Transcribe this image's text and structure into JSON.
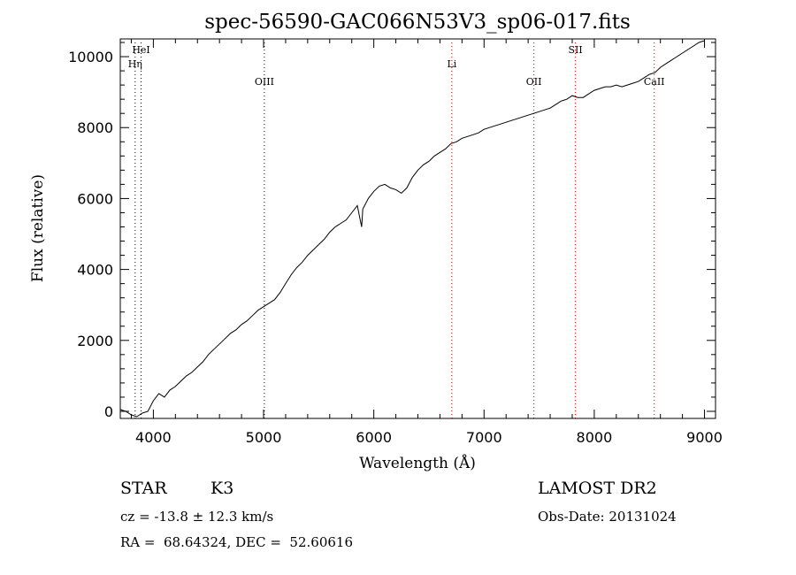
{
  "chart_data": {
    "type": "line",
    "title": "spec-56590-GAC066N53V3_sp06-017.fits",
    "xlabel": "Wavelength (Å)",
    "ylabel": "Flux (relative)",
    "xlim": [
      3700,
      9100
    ],
    "ylim": [
      -200,
      10500
    ],
    "x_ticks": [
      4000,
      5000,
      6000,
      7000,
      8000,
      9000
    ],
    "y_ticks": [
      0,
      2000,
      4000,
      6000,
      8000,
      10000
    ],
    "grid": false,
    "series": [
      {
        "x": [
          3700,
          3750,
          3800,
          3850,
          3900,
          3950,
          4000,
          4050,
          4100,
          4150,
          4200,
          4250,
          4300,
          4350,
          4400,
          4450,
          4500,
          4550,
          4600,
          4650,
          4700,
          4750,
          4800,
          4850,
          4900,
          4950,
          5000,
          5050,
          5100,
          5150,
          5200,
          5250,
          5300,
          5350,
          5400,
          5450,
          5500,
          5550,
          5600,
          5650,
          5700,
          5750,
          5800,
          5850,
          5890,
          5900,
          5950,
          6000,
          6050,
          6100,
          6150,
          6200,
          6250,
          6300,
          6350,
          6400,
          6450,
          6500,
          6550,
          6600,
          6650,
          6700,
          6750,
          6800,
          6850,
          6900,
          6950,
          7000,
          7050,
          7100,
          7150,
          7200,
          7250,
          7300,
          7350,
          7400,
          7450,
          7500,
          7550,
          7600,
          7650,
          7700,
          7750,
          7800,
          7850,
          7900,
          7950,
          8000,
          8050,
          8100,
          8150,
          8200,
          8250,
          8300,
          8350,
          8400,
          8450,
          8500,
          8550,
          8600,
          8650,
          8700,
          8750,
          8800,
          8850,
          8900,
          8950,
          9000
        ],
        "y": [
          50,
          0,
          -100,
          -150,
          -50,
          0,
          300,
          500,
          400,
          600,
          700,
          850,
          1000,
          1100,
          1250,
          1400,
          1600,
          1750,
          1900,
          2050,
          2200,
          2300,
          2450,
          2550,
          2700,
          2850,
          2950,
          3050,
          3150,
          3350,
          3600,
          3850,
          4050,
          4200,
          4400,
          4550,
          4700,
          4850,
          5050,
          5200,
          5300,
          5400,
          5600,
          5800,
          5200,
          5700,
          6000,
          6200,
          6350,
          6400,
          6300,
          6250,
          6150,
          6300,
          6600,
          6800,
          6950,
          7050,
          7200,
          7300,
          7400,
          7550,
          7600,
          7700,
          7750,
          7800,
          7850,
          7950,
          8000,
          8050,
          8100,
          8150,
          8200,
          8250,
          8300,
          8350,
          8400,
          8450,
          8500,
          8550,
          8650,
          8750,
          8800,
          8900,
          8850,
          8850,
          8950,
          9050,
          9100,
          9150,
          9150,
          9200,
          9150,
          9200,
          9250,
          9300,
          9400,
          9500,
          9550,
          9700,
          9800,
          9900,
          10000,
          10100,
          10200,
          10300,
          10400,
          10450
        ]
      }
    ],
    "line_markers": [
      {
        "label": "HeI",
        "x": 3889,
        "color": "#000000",
        "label_y": 10100
      },
      {
        "label": "Hη",
        "x": 3835,
        "color": "#000000",
        "label_y": 9700
      },
      {
        "label": "OIII",
        "x": 5007,
        "color": "#000000",
        "label_y": 9200
      },
      {
        "label": "Li",
        "x": 6708,
        "color": "#cc0000",
        "label_y": 9700
      },
      {
        "label": "OII",
        "x": 7452,
        "color": "#cc0000",
        "label_y": 9200
      },
      {
        "label": "SII",
        "x": 7829,
        "color": "#cc0000",
        "label_y": 10100
      },
      {
        "label": "CaII",
        "x": 8544,
        "color": "#cc0000",
        "label_y": 9200
      }
    ]
  },
  "info": {
    "object_type": "STAR",
    "subclass": "K3",
    "redshift": "cz = -13.8 ± 12.3 km/s",
    "coords": "RA =  68.64324, DEC =  52.60616",
    "survey": "LAMOST DR2",
    "obs_date": "Obs-Date: 20131024"
  }
}
